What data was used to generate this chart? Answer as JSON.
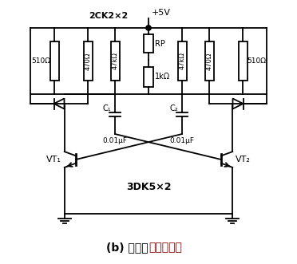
{
  "supply_label": "+5V",
  "diode_label": "2CK2×2",
  "transistor_label": "3DK5×2",
  "R_left_outer": "510Ω",
  "R_left_mid1": "470Ω",
  "R_left_mid2": "47kΩ",
  "RP_label": "RP",
  "R_center": "1kΩ",
  "R_right_mid1": "47kΩ",
  "R_right_mid2": "470Ω",
  "R_right_outer": "510Ω",
  "C1_label": "C₁",
  "C2_label": "C₂",
  "Cap_val": "0.01μF",
  "VT1_label": "VT₁",
  "VT2_label": "VT₂",
  "bg_color": "#ffffff",
  "line_color": "#000000",
  "figsize": [
    3.72,
    3.31
  ],
  "dpi": 100
}
